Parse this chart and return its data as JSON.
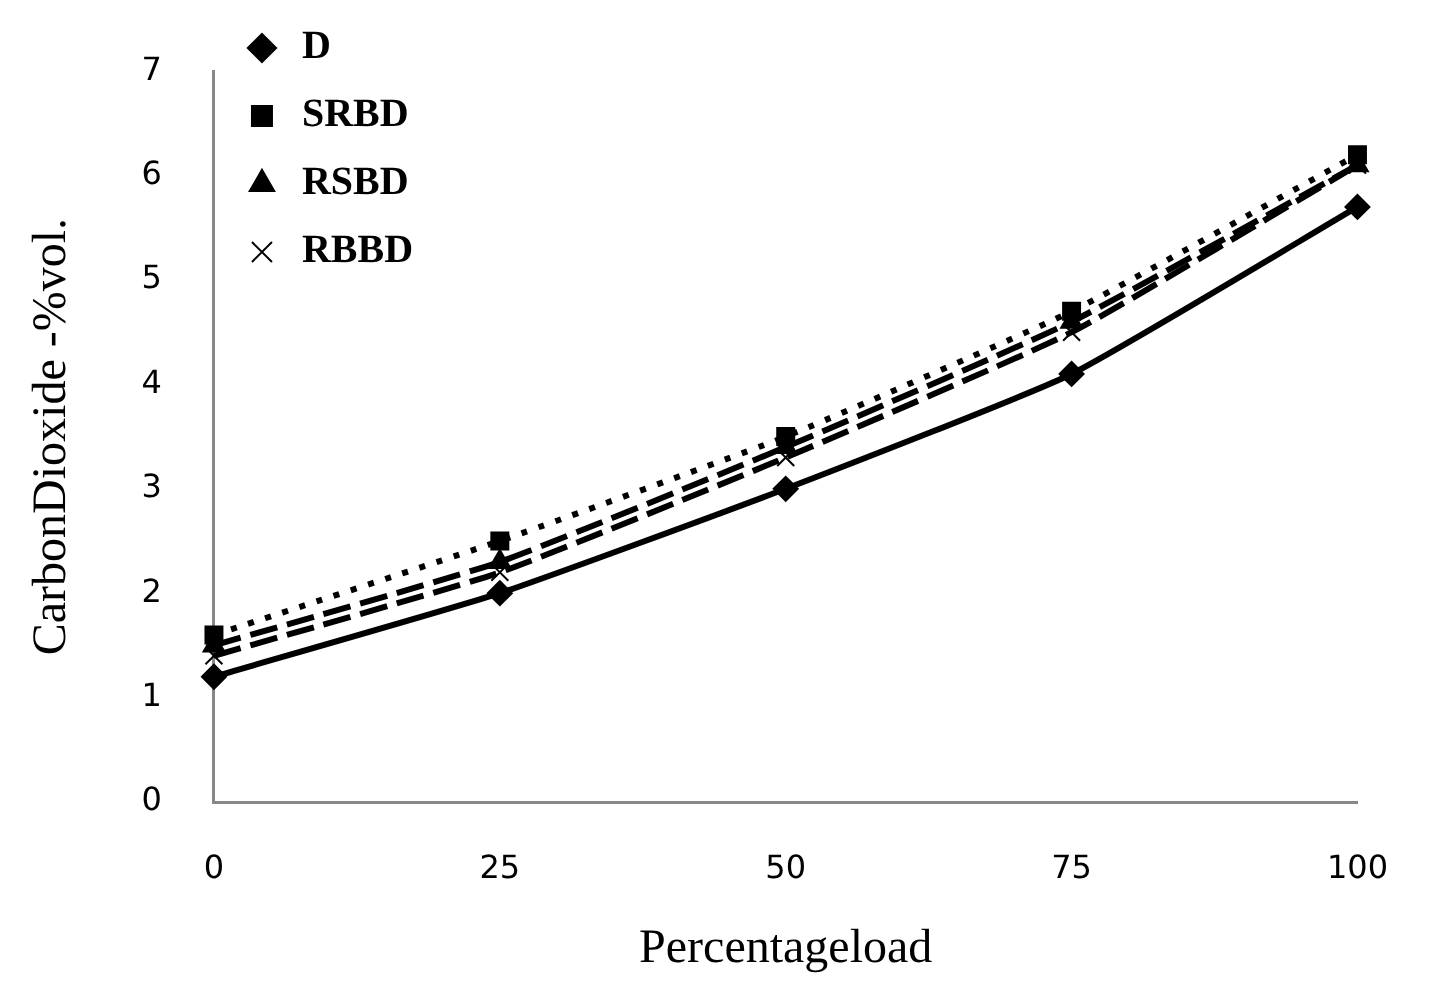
{
  "chart_data": {
    "type": "line",
    "xlabel": "Percentageload",
    "ylabel": "CarbonDioxide -%vol.",
    "categories": [
      "0",
      "25",
      "50",
      "75",
      "100"
    ],
    "series": [
      {
        "name": "D",
        "color": "#000000",
        "marker": "diamond",
        "line_style": "solid",
        "values": [
          1.2,
          2.0,
          3.0,
          4.1,
          5.7
        ]
      },
      {
        "name": "SRBD",
        "color": "#000000",
        "marker": "square",
        "line_style": "dotted",
        "values": [
          1.6,
          2.5,
          3.5,
          4.7,
          6.2
        ]
      },
      {
        "name": "RSBD",
        "color": "#000000",
        "marker": "triangle",
        "line_style": "dashed",
        "values": [
          1.5,
          2.3,
          3.4,
          4.6,
          6.1
        ]
      },
      {
        "name": "RBBD",
        "color": "#000000",
        "marker": "cross",
        "line_style": "dashed",
        "values": [
          1.4,
          2.2,
          3.3,
          4.5,
          6.1
        ]
      }
    ],
    "ylim": [
      0,
      7
    ],
    "yticks": [
      0,
      1,
      2,
      3,
      4,
      5,
      6,
      7
    ],
    "grid": false,
    "legend": "top left"
  }
}
